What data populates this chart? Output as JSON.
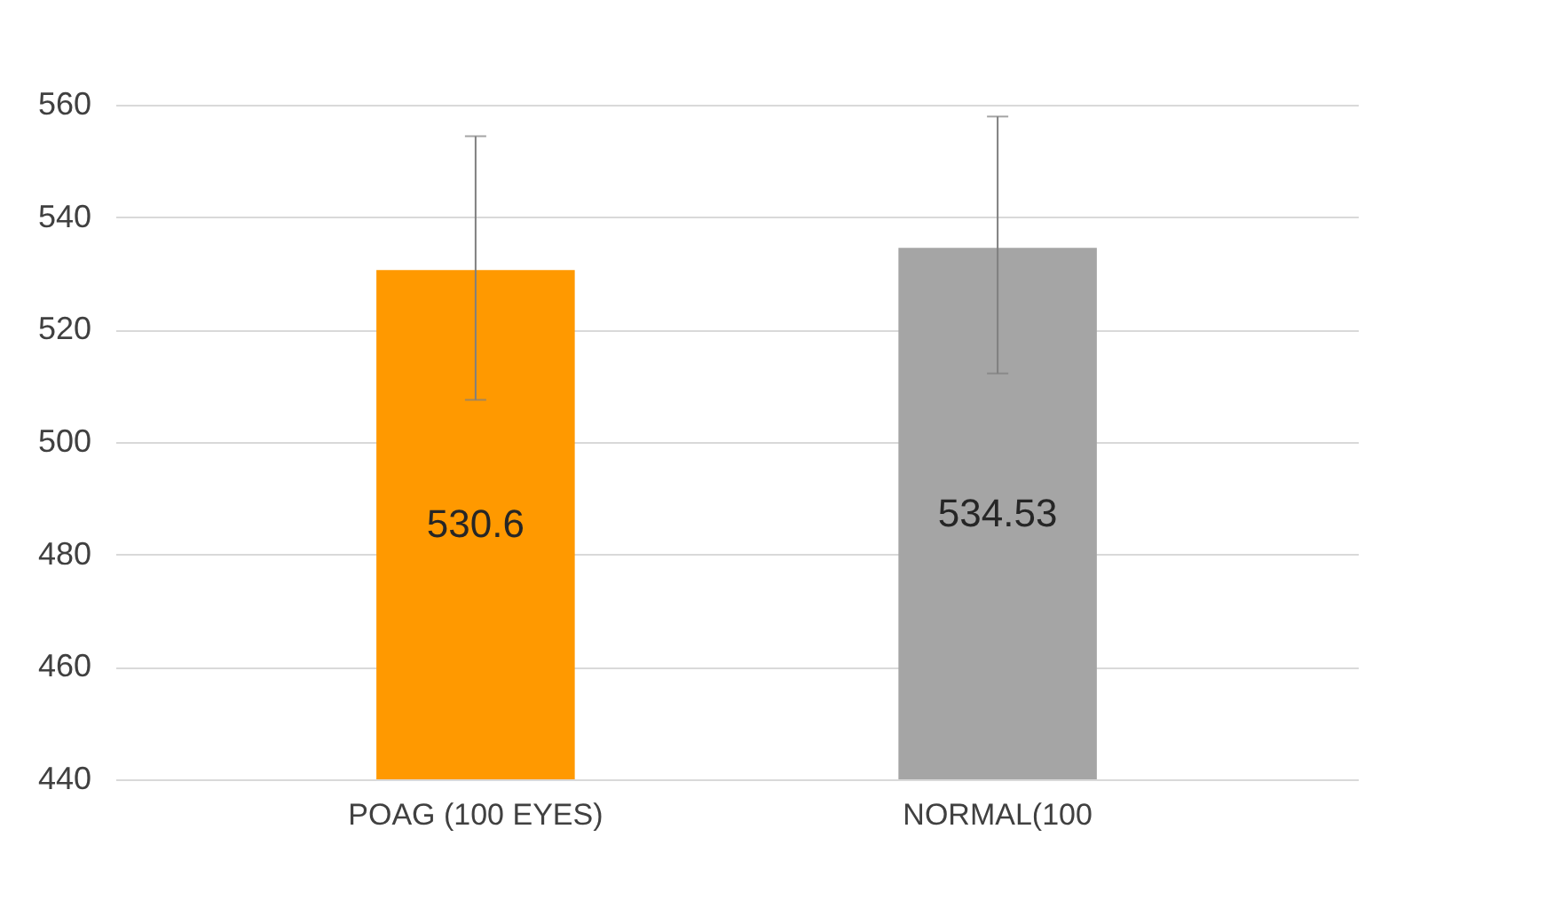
{
  "chart_data": {
    "type": "bar",
    "categories": [
      "POAG (100 EYES)",
      "NORMAL(100"
    ],
    "values": [
      530.6,
      534.53
    ],
    "colors": [
      "#ff9900",
      "#a5a5a5"
    ],
    "errors": [
      [
        507.5,
        554.4
      ],
      [
        512.2,
        557.9
      ]
    ],
    "data_labels": true,
    "ylim": [
      440,
      560
    ],
    "yticks": [
      440,
      460,
      480,
      500,
      520,
      540,
      560
    ],
    "grid": "y"
  }
}
